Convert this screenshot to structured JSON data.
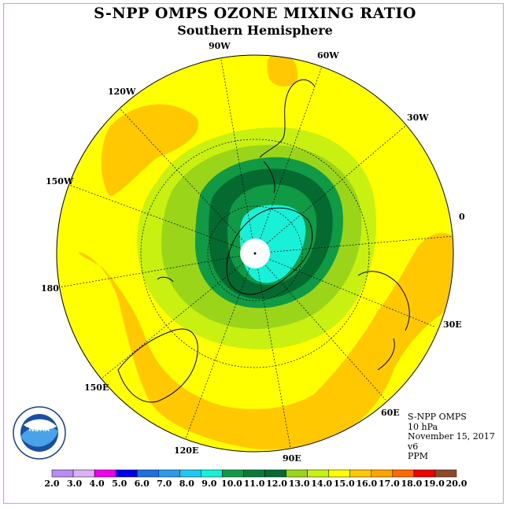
{
  "title": "S-NPP OMPS OZONE MIXING RATIO",
  "subtitle": "Southern Hemisphere",
  "longitude_labels": [
    "90W",
    "60W",
    "120W",
    "30W",
    "150W",
    "0",
    "180",
    "30E",
    "150E",
    "60E",
    "120E",
    "90E"
  ],
  "info": {
    "instrument": "S-NPP OMPS",
    "level": "10 hPa",
    "date": "November 15, 2017",
    "version": "v6",
    "units": "PPM"
  },
  "logo": {
    "text": "NOAA",
    "ring_text": "NATIONAL OCEANIC AND ATMOSPHERIC ADMINISTRATION · U.S. DEPARTMENT OF COMMERCE"
  },
  "colorbar": {
    "ticks": [
      "2.0",
      "3.0",
      "4.0",
      "5.0",
      "6.0",
      "7.0",
      "8.0",
      "9.0",
      "10.0",
      "11.0",
      "12.0",
      "13.0",
      "14.0",
      "15.0",
      "16.0",
      "17.0",
      "18.0",
      "19.0",
      "20.0"
    ],
    "colors": [
      "#b98cf0",
      "#d8b2f2",
      "#ee00ee",
      "#0000ee",
      "#1e6fe0",
      "#2f9ae8",
      "#1ec8f0",
      "#18f0d8",
      "#109a46",
      "#0a7a3a",
      "#046a30",
      "#9ad51a",
      "#c8f010",
      "#ffff00",
      "#ffc800",
      "#ffa400",
      "#ff6a00",
      "#f00000",
      "#8c4a28"
    ]
  },
  "colors": {
    "yellow": "#ffff00",
    "orange": "#ffc800",
    "lime": "#c8f010",
    "green1": "#9ad51a",
    "green2": "#109a46",
    "green3": "#046a30",
    "cyan": "#18f0d8"
  }
}
